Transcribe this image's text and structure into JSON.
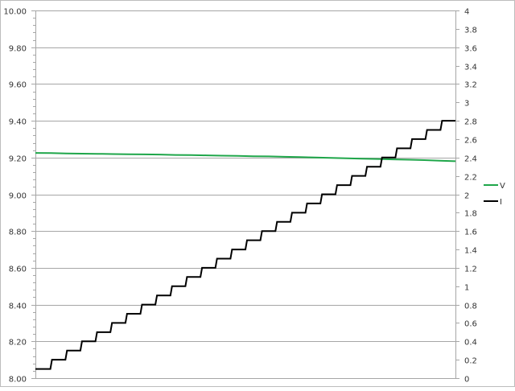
{
  "chart_data": {
    "type": "line",
    "title": "",
    "xlabel": "",
    "grid": true,
    "legend_placement": "right",
    "y_left": {
      "ylim": [
        8.0,
        10.0
      ],
      "ticks": [
        "8.00",
        "8.20",
        "8.40",
        "8.60",
        "8.80",
        "9.00",
        "9.20",
        "9.40",
        "9.60",
        "9.80",
        "10.00"
      ]
    },
    "y_right": {
      "ylim": [
        0,
        4
      ],
      "ticks": [
        "0",
        "0.2",
        "0.4",
        "0.6",
        "0.8",
        "1",
        "1.2",
        "1.4",
        "1.6",
        "1.8",
        "2",
        "2.2",
        "2.4",
        "2.6",
        "2.8",
        "3",
        "3.2",
        "3.4",
        "3.6",
        "3.8",
        "4"
      ]
    },
    "series": [
      {
        "name": "V",
        "axis": "left",
        "color": "#1fa64a",
        "values": [
          9.225,
          9.224,
          9.222,
          9.221,
          9.22,
          9.219,
          9.218,
          9.217,
          9.216,
          9.214,
          9.213,
          9.212,
          9.21,
          9.209,
          9.207,
          9.206,
          9.204,
          9.202,
          9.2,
          9.198,
          9.196,
          9.194,
          9.192,
          9.19,
          9.188,
          9.186,
          9.183,
          9.18
        ]
      },
      {
        "name": "I",
        "axis": "right",
        "color": "#000000",
        "style": "step",
        "values": [
          0.1,
          0.2,
          0.3,
          0.4,
          0.5,
          0.6,
          0.7,
          0.8,
          0.9,
          1.0,
          1.1,
          1.2,
          1.3,
          1.4,
          1.5,
          1.6,
          1.7,
          1.8,
          1.9,
          2.0,
          2.1,
          2.2,
          2.3,
          2.4,
          2.5,
          2.6,
          2.7,
          2.8
        ]
      }
    ]
  }
}
